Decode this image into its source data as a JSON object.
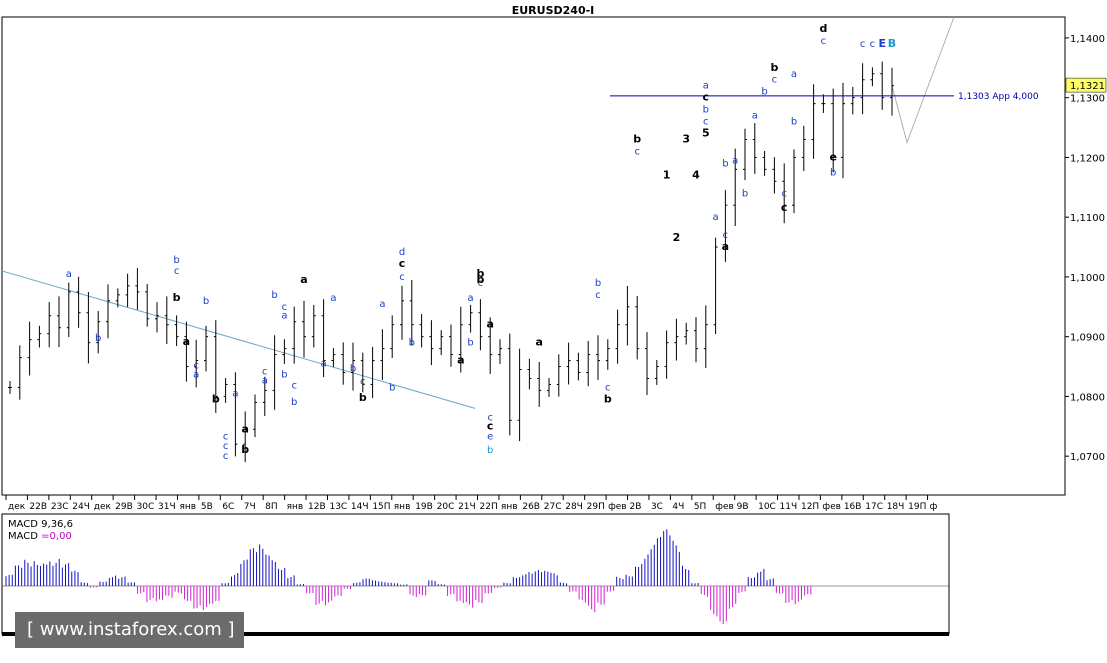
{
  "window_title": "EURUSD240-I",
  "watermark": "[ www.instaforex.com ]",
  "colors": {
    "background": "#ffffff",
    "bars": "#000000",
    "trend_line": "#6aa6c8",
    "level_line": "#0000aa",
    "macd_positive": "#1010c0",
    "macd_negative": "#d020d0",
    "label_blue": "#1a3ec8",
    "label_black": "#000000",
    "label_cyan": "#1a9ad0",
    "price_tag_bg": "#ffff66"
  },
  "chart_data": [
    {
      "type": "ohlc",
      "symbol": "EURUSD",
      "timeframe": "H4",
      "ylim": [
        1.0635,
        1.1435
      ],
      "y_ticks": [
        "1,1400",
        "1,1300",
        "1,1200",
        "1,1100",
        "1,1000",
        "1,0900",
        "1,0800",
        "1,0700"
      ],
      "x_tick_labels": [
        "дек",
        "22В",
        "23С",
        "24Ч",
        "дек",
        "29В",
        "30С",
        "31Ч",
        "янв",
        "5В",
        "6С",
        "7Ч",
        "8П",
        "янв",
        "12В",
        "13С",
        "14Ч",
        "15П",
        "янв",
        "19В",
        "20С",
        "21Ч",
        "22П",
        "янв",
        "26В",
        "27С",
        "28Ч",
        "29П",
        "фев",
        "2В",
        "3С",
        "4Ч",
        "5П",
        "фев",
        "9В",
        "10С",
        "11Ч",
        "12П",
        "фев",
        "16В",
        "17С",
        "18Ч",
        "19П",
        "ф"
      ],
      "current_price": "1,1321",
      "level_label": "1,1303 App 4,000",
      "level_value": 1.1303,
      "close_path": [
        1.0815,
        1.0865,
        1.0895,
        1.0905,
        1.0935,
        1.0915,
        1.0975,
        1.094,
        1.089,
        1.0925,
        1.096,
        1.097,
        1.0985,
        1.0975,
        1.093,
        1.0935,
        1.092,
        1.09,
        1.085,
        1.086,
        1.09,
        1.08,
        1.082,
        1.072,
        1.0745,
        1.079,
        1.081,
        1.087,
        1.088,
        1.0925,
        1.09,
        1.0935,
        1.086,
        1.087,
        1.084,
        1.086,
        1.082,
        1.086,
        1.088,
        1.092,
        1.096,
        1.092,
        1.09,
        1.088,
        1.09,
        1.087,
        1.092,
        1.094,
        1.09,
        1.087,
        1.088,
        1.076,
        1.0845,
        1.083,
        1.081,
        1.082,
        1.085,
        1.086,
        1.084,
        1.087,
        1.086,
        1.088,
        1.092,
        1.095,
        1.088,
        1.083,
        1.085,
        1.089,
        1.09,
        1.091,
        1.088,
        1.092,
        1.105,
        1.112,
        1.118,
        1.123,
        1.12,
        1.118,
        1.116,
        1.112,
        1.12,
        1.123,
        1.129,
        1.129,
        1.12,
        1.129,
        1.13,
        1.133,
        1.134,
        1.13,
        1.132
      ],
      "wave_labels": [
        {
          "t": "a",
          "color": "label_blue",
          "i": 6,
          "price": 1.1
        },
        {
          "t": "b",
          "color": "label_blue",
          "i": 9,
          "price": 1.0893
        },
        {
          "t": "b",
          "color": "label_blue",
          "i": 17,
          "price": 1.1023
        },
        {
          "t": "c",
          "color": "label_blue",
          "i": 17,
          "price": 1.1005
        },
        {
          "t": "a",
          "color": "label_black",
          "i": 18,
          "price": 1.0886
        },
        {
          "t": "c",
          "color": "label_blue",
          "i": 26,
          "price": 1.0837
        },
        {
          "t": "a",
          "color": "label_blue",
          "i": 26,
          "price": 1.0822
        },
        {
          "t": "b",
          "color": "label_blue",
          "i": 27,
          "price": 1.0965
        },
        {
          "t": "b",
          "color": "label_blue",
          "i": 39,
          "price": 1.081
        },
        {
          "t": "a",
          "color": "label_blue",
          "i": 33,
          "price": 1.096
        },
        {
          "t": "b",
          "color": "label_black",
          "i": 64,
          "price": 1.1225
        },
        {
          "t": "c",
          "color": "label_blue",
          "i": 64,
          "price": 1.1205
        },
        {
          "t": "d",
          "color": "label_black",
          "i": 83,
          "price": 1.141
        },
        {
          "t": "c",
          "color": "label_blue",
          "i": 83,
          "price": 1.139
        },
        {
          "t": "b",
          "color": "label_black",
          "i": 78,
          "price": 1.1345
        },
        {
          "t": "c",
          "color": "label_blue",
          "i": 78,
          "price": 1.1325
        },
        {
          "t": "a",
          "color": "label_blue",
          "i": 71,
          "price": 1.1315
        },
        {
          "t": "c",
          "color": "label_black",
          "i": 71,
          "price": 1.1295
        },
        {
          "t": "b",
          "color": "label_blue",
          "i": 71,
          "price": 1.1275
        },
        {
          "t": "c",
          "color": "label_blue",
          "i": 71,
          "price": 1.1255
        },
        {
          "t": "5",
          "color": "label_black",
          "i": 71,
          "price": 1.1235
        },
        {
          "t": "3",
          "color": "label_black",
          "i": 69,
          "price": 1.1225
        },
        {
          "t": "4",
          "color": "label_black",
          "i": 70,
          "price": 1.1165
        },
        {
          "t": "1",
          "color": "label_black",
          "i": 67,
          "price": 1.1165
        },
        {
          "t": "2",
          "color": "label_black",
          "i": 68,
          "price": 1.106
        },
        {
          "t": "a",
          "color": "label_black",
          "i": 73,
          "price": 1.1045
        },
        {
          "t": "c",
          "color": "label_blue",
          "i": 73,
          "price": 1.1065
        },
        {
          "t": "a",
          "color": "label_blue",
          "i": 72,
          "price": 1.1095
        },
        {
          "t": "b",
          "color": "label_blue",
          "i": 73,
          "price": 1.1185
        },
        {
          "t": "a",
          "color": "label_blue",
          "i": 74,
          "price": 1.119
        },
        {
          "t": "b",
          "color": "label_blue",
          "i": 75,
          "price": 1.1135
        },
        {
          "t": "a",
          "color": "label_blue",
          "i": 76,
          "price": 1.1265
        },
        {
          "t": "b",
          "color": "label_blue",
          "i": 77,
          "price": 1.1305
        },
        {
          "t": "c",
          "color": "label_blue",
          "i": 79,
          "price": 1.1135
        },
        {
          "t": "c",
          "color": "label_black",
          "i": 79,
          "price": 1.111
        },
        {
          "t": "b",
          "color": "label_blue",
          "i": 80,
          "price": 1.1255
        },
        {
          "t": "a",
          "color": "label_blue",
          "i": 80,
          "price": 1.1335
        },
        {
          "t": "e",
          "color": "label_black",
          "i": 84,
          "price": 1.1195
        },
        {
          "t": "b",
          "color": "label_blue",
          "i": 84,
          "price": 1.117
        },
        {
          "t": "c",
          "color": "label_blue",
          "i": 87,
          "price": 1.1385
        },
        {
          "t": "c",
          "color": "label_blue",
          "i": 88,
          "price": 1.1385
        },
        {
          "t": "E",
          "color": "label_blue",
          "i": 89,
          "price": 1.1385
        },
        {
          "t": "B",
          "color": "label_cyan",
          "i": 90,
          "price": 1.1385
        },
        {
          "t": "b",
          "color": "label_black",
          "i": 48,
          "price": 1.1
        },
        {
          "t": "c",
          "color": "label_blue",
          "i": 48,
          "price": 1.0985
        },
        {
          "t": "a",
          "color": "label_blue",
          "i": 47,
          "price": 1.096
        },
        {
          "t": "b",
          "color": "label_blue",
          "i": 47,
          "price": 1.0885
        },
        {
          "t": "a",
          "color": "label_black",
          "i": 46,
          "price": 1.0855
        },
        {
          "t": "d",
          "color": "label_blue",
          "i": 40,
          "price": 1.1037
        },
        {
          "t": "c",
          "color": "label_black",
          "i": 40,
          "price": 1.1017
        },
        {
          "t": "c",
          "color": "label_blue",
          "i": 40,
          "price": 1.0995
        },
        {
          "t": "b",
          "color": "label_blue",
          "i": 41,
          "price": 1.0885
        },
        {
          "t": "a",
          "color": "label_blue",
          "i": 38,
          "price": 1.095
        },
        {
          "t": "a",
          "color": "label_blue",
          "i": 32,
          "price": 1.085
        },
        {
          "t": "a",
          "color": "label_black",
          "i": 30,
          "price": 1.099
        },
        {
          "t": "c",
          "color": "label_blue",
          "i": 28,
          "price": 1.0945
        },
        {
          "t": "a",
          "color": "label_blue",
          "i": 28,
          "price": 1.093
        },
        {
          "t": "b",
          "color": "label_blue",
          "i": 28,
          "price": 1.0832
        },
        {
          "t": "c",
          "color": "label_blue",
          "i": 29,
          "price": 1.0813
        },
        {
          "t": "b",
          "color": "label_blue",
          "i": 29,
          "price": 1.0786
        },
        {
          "t": "b",
          "color": "label_blue",
          "i": 35,
          "price": 1.0842
        },
        {
          "t": "c",
          "color": "label_blue",
          "i": 36,
          "price": 1.082
        },
        {
          "t": "b",
          "color": "label_black",
          "i": 36,
          "price": 1.0792
        },
        {
          "t": "b",
          "color": "label_blue",
          "i": 20,
          "price": 1.0955
        },
        {
          "t": "b",
          "color": "label_black",
          "i": 17,
          "price": 1.096
        },
        {
          "t": "c",
          "color": "label_blue",
          "i": 19,
          "price": 1.0847
        },
        {
          "t": "a",
          "color": "label_blue",
          "i": 19,
          "price": 1.0832
        },
        {
          "t": "a",
          "color": "label_blue",
          "i": 23,
          "price": 1.08
        },
        {
          "t": "b",
          "color": "label_black",
          "i": 21,
          "price": 1.079
        },
        {
          "t": "c",
          "color": "label_blue",
          "i": 22,
          "price": 1.0728
        },
        {
          "t": "c",
          "color": "label_blue",
          "i": 22,
          "price": 1.0712
        },
        {
          "t": "c",
          "color": "label_blue",
          "i": 22,
          "price": 1.0695
        },
        {
          "t": "a",
          "color": "label_black",
          "i": 24,
          "price": 1.074
        },
        {
          "t": "b",
          "color": "label_black",
          "i": 24,
          "price": 1.0705
        },
        {
          "t": "b",
          "color": "label_black",
          "i": 48,
          "price": 1.099
        },
        {
          "t": "a",
          "color": "label_black",
          "i": 49,
          "price": 1.0915
        },
        {
          "t": "c",
          "color": "label_blue",
          "i": 49,
          "price": 1.076
        },
        {
          "t": "c",
          "color": "label_black",
          "i": 49,
          "price": 1.0745
        },
        {
          "t": "e",
          "color": "label_blue",
          "i": 49,
          "price": 1.0728
        },
        {
          "t": "b",
          "color": "label_cyan",
          "i": 49,
          "price": 1.0705
        },
        {
          "t": "b",
          "color": "label_blue",
          "i": 60,
          "price": 1.0985
        },
        {
          "t": "c",
          "color": "label_blue",
          "i": 60,
          "price": 1.0965
        },
        {
          "t": "c",
          "color": "label_blue",
          "i": 61,
          "price": 1.081
        },
        {
          "t": "b",
          "color": "label_black",
          "i": 61,
          "price": 1.079
        },
        {
          "t": "a",
          "color": "label_black",
          "i": 54,
          "price": 1.0885
        }
      ]
    },
    {
      "type": "bar",
      "name": "MACD 9,36,6",
      "legend": [
        "MACD 9,36,6",
        "MACD =0,00"
      ],
      "values": [
        0.3,
        0.55,
        0.7,
        0.75,
        0.8,
        0.75,
        0.6,
        0.4,
        0.1,
        -0.05,
        0.15,
        0.3,
        0.25,
        0.1,
        -0.2,
        -0.45,
        -0.5,
        -0.35,
        -0.2,
        -0.4,
        -0.6,
        -0.65,
        -0.55,
        0.1,
        0.35,
        0.7,
        1.0,
        1.1,
        0.9,
        0.6,
        0.3,
        0.05,
        -0.2,
        -0.5,
        -0.55,
        -0.35,
        -0.1,
        0.1,
        0.2,
        0.15,
        0.12,
        0.1,
        0.05,
        -0.3,
        -0.25,
        0.15,
        0.05,
        -0.3,
        -0.55,
        -0.6,
        -0.45,
        -0.2,
        -0.05,
        0.1,
        0.3,
        0.4,
        0.42,
        0.4,
        0.35,
        0.1,
        -0.2,
        -0.5,
        -0.7,
        -0.5,
        -0.15,
        0.25,
        0.35,
        0.7,
        1.0,
        1.3,
        1.5,
        1.2,
        0.6,
        0.1,
        -0.3,
        -0.8,
        -1.0,
        -0.6,
        -0.2,
        0.3,
        0.5,
        0.2,
        -0.2,
        -0.45,
        -0.5,
        -0.3
      ]
    }
  ]
}
